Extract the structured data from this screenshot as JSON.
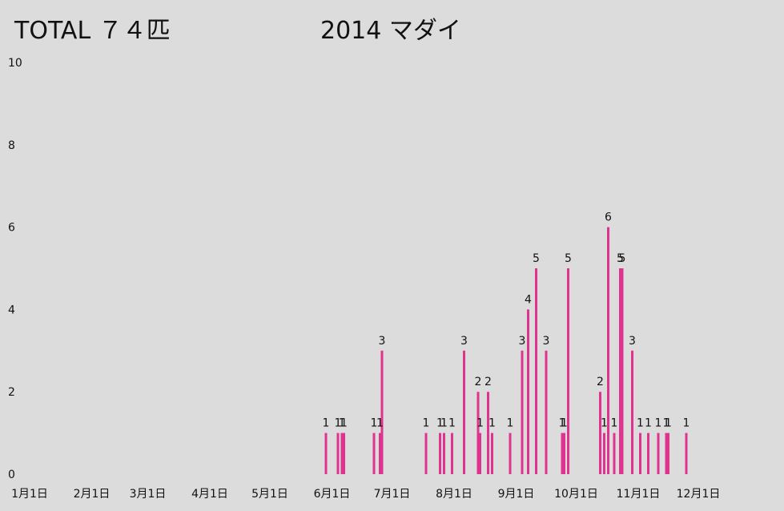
{
  "chart_data": {
    "type": "bar",
    "title": "2014 マダイ",
    "total_label": "TOTAL ７４匹",
    "xlabel": "",
    "ylabel": "",
    "ylim": [
      0,
      10
    ],
    "yticks": [
      0,
      2,
      4,
      6,
      8,
      10
    ],
    "xlim": [
      "2014-01-01",
      "2014-12-31"
    ],
    "xtick_labels": [
      "1月1日",
      "2月1日",
      "3月1日",
      "4月1日",
      "5月1日",
      "6月1日",
      "7月1日",
      "8月1日",
      "9月1日",
      "10月1日",
      "11月1日",
      "12月1日"
    ],
    "xtick_dates": [
      "2014-01-01",
      "2014-02-01",
      "2014-03-01",
      "2014-04-01",
      "2014-05-01",
      "2014-06-01",
      "2014-07-01",
      "2014-08-01",
      "2014-09-01",
      "2014-10-01",
      "2014-11-01",
      "2014-12-01"
    ],
    "grid": false,
    "bar_color": "#e0338f",
    "points": [
      {
        "date": "2014-05-29",
        "value": 1
      },
      {
        "date": "2014-06-04",
        "value": 1
      },
      {
        "date": "2014-06-06",
        "value": 1
      },
      {
        "date": "2014-06-07",
        "value": 1
      },
      {
        "date": "2014-06-22",
        "value": 1
      },
      {
        "date": "2014-06-25",
        "value": 1
      },
      {
        "date": "2014-06-26",
        "value": 3
      },
      {
        "date": "2014-07-18",
        "value": 1
      },
      {
        "date": "2014-07-25",
        "value": 1
      },
      {
        "date": "2014-07-27",
        "value": 1
      },
      {
        "date": "2014-07-31",
        "value": 1
      },
      {
        "date": "2014-08-06",
        "value": 3
      },
      {
        "date": "2014-08-13",
        "value": 2
      },
      {
        "date": "2014-08-14",
        "value": 1
      },
      {
        "date": "2014-08-18",
        "value": 2
      },
      {
        "date": "2014-08-20",
        "value": 1
      },
      {
        "date": "2014-08-29",
        "value": 1
      },
      {
        "date": "2014-09-04",
        "value": 3
      },
      {
        "date": "2014-09-07",
        "value": 4
      },
      {
        "date": "2014-09-11",
        "value": 5
      },
      {
        "date": "2014-09-16",
        "value": 3
      },
      {
        "date": "2014-09-24",
        "value": 1
      },
      {
        "date": "2014-09-25",
        "value": 1
      },
      {
        "date": "2014-09-27",
        "value": 5
      },
      {
        "date": "2014-10-13",
        "value": 2
      },
      {
        "date": "2014-10-15",
        "value": 1
      },
      {
        "date": "2014-10-17",
        "value": 6
      },
      {
        "date": "2014-10-20",
        "value": 1
      },
      {
        "date": "2014-10-23",
        "value": 5
      },
      {
        "date": "2014-10-24",
        "value": 5
      },
      {
        "date": "2014-10-29",
        "value": 3
      },
      {
        "date": "2014-11-02",
        "value": 1
      },
      {
        "date": "2014-11-06",
        "value": 1
      },
      {
        "date": "2014-11-11",
        "value": 1
      },
      {
        "date": "2014-11-15",
        "value": 1
      },
      {
        "date": "2014-11-16",
        "value": 1
      },
      {
        "date": "2014-11-25",
        "value": 1
      }
    ]
  }
}
